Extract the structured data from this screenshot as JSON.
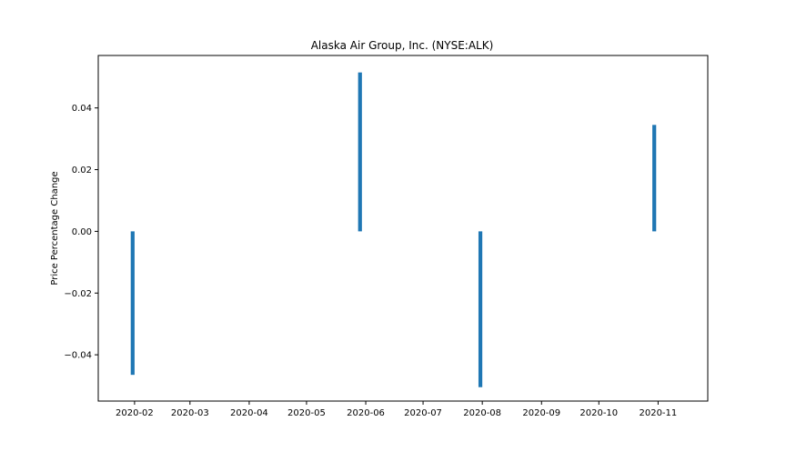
{
  "chart_data": {
    "type": "bar",
    "title": "Alaska Air Group, Inc. (NYSE:ALK)",
    "xlabel": "",
    "ylabel": "Price Percentage Change",
    "xlim": [
      "2020-01-13",
      "2020-11-27"
    ],
    "ylim": [
      -0.055,
      0.057
    ],
    "x_tick_labels": [
      "2020-02",
      "2020-03",
      "2020-04",
      "2020-05",
      "2020-06",
      "2020-07",
      "2020-08",
      "2020-09",
      "2020-10",
      "2020-11"
    ],
    "x_tick_dates": [
      "2020-02-01",
      "2020-03-01",
      "2020-04-01",
      "2020-05-01",
      "2020-06-01",
      "2020-07-01",
      "2020-08-01",
      "2020-09-01",
      "2020-10-01",
      "2020-11-01"
    ],
    "y_ticks": [
      -0.04,
      -0.02,
      0.0,
      0.02,
      0.04
    ],
    "y_tick_labels": [
      "−0.04",
      "−0.02",
      "0.00",
      "0.02",
      "0.04"
    ],
    "grid": false,
    "bar_color": "#1f77b4",
    "series": [
      {
        "x": [
          "2020-01-31",
          "2020-05-29",
          "2020-07-31",
          "2020-10-30"
        ],
        "values": [
          -0.0465,
          0.0515,
          -0.0505,
          0.0345
        ]
      }
    ]
  }
}
